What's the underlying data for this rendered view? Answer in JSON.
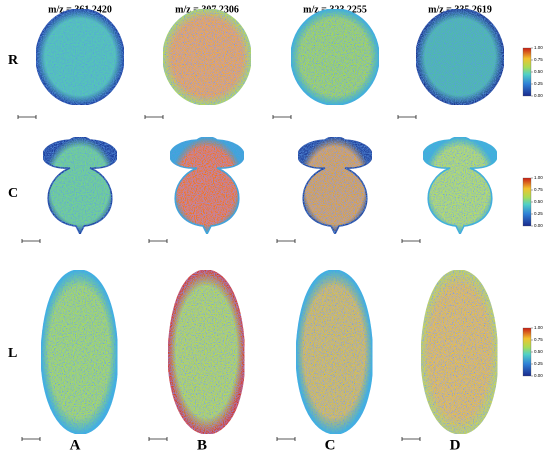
{
  "columns": [
    {
      "label": "m/z = 361.2420",
      "letter": "A"
    },
    {
      "label": "m/z = 307.2306",
      "letter": "B"
    },
    {
      "label": "m/z = 323.2255",
      "letter": "C"
    },
    {
      "label": "m/z = 335.2619",
      "letter": "D"
    }
  ],
  "rows": [
    {
      "label": "R",
      "colorbar": {
        "ticks": [
          {
            "value": 0,
            "label": "0.00"
          },
          {
            "value": 0.25,
            "label": "0.25"
          },
          {
            "value": 0.5,
            "label": "0.50"
          },
          {
            "value": 0.75,
            "label": "0.75"
          },
          {
            "value": 1,
            "label": "1.00"
          }
        ]
      }
    },
    {
      "label": "C",
      "colorbar": {
        "ticks": [
          {
            "value": 0,
            "label": "0.00"
          },
          {
            "value": 0.25,
            "label": "0.25"
          },
          {
            "value": 0.5,
            "label": "0.50"
          },
          {
            "value": 0.75,
            "label": "0.75"
          },
          {
            "value": 1,
            "label": "1.00"
          }
        ]
      }
    },
    {
      "label": "L",
      "colorbar": {
        "ticks": [
          {
            "value": 0,
            "label": "0.00"
          },
          {
            "value": 0.25,
            "label": "0.25"
          },
          {
            "value": 0.5,
            "label": "0.50"
          },
          {
            "value": 0.75,
            "label": "0.75"
          },
          {
            "value": 1,
            "label": "1.00"
          }
        ]
      }
    }
  ]
}
